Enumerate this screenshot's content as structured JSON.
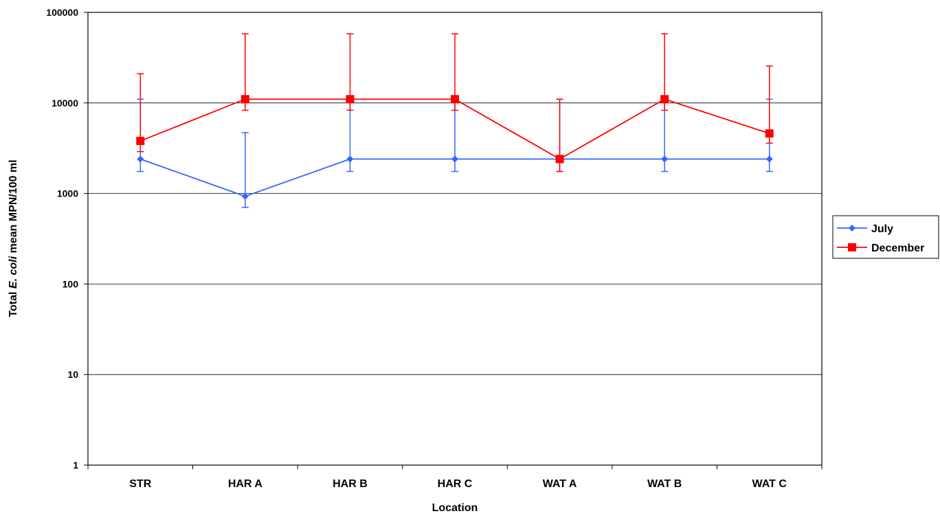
{
  "chart_data": {
    "type": "line",
    "xlabel": "Location",
    "ylabel_parts": [
      "Total ",
      "E. coli",
      " mean MPN/100 ml"
    ],
    "yscale": "log",
    "ylim": [
      1,
      100000
    ],
    "yticks": [
      "1",
      "10",
      "100",
      "1000",
      "10000",
      "100000"
    ],
    "ytick_values": [
      1,
      10,
      100,
      1000,
      10000,
      100000
    ],
    "grid": true,
    "legend_position": "right",
    "categories": [
      "STR",
      "HAR A",
      "HAR B",
      "HAR C",
      "WAT A",
      "WAT B",
      "WAT C"
    ],
    "series": [
      {
        "name": "July",
        "color": "#3366ff",
        "marker": "diamond",
        "values": [
          2400,
          930,
          2400,
          2400,
          2400,
          2400,
          2400
        ],
        "err_low": [
          1750,
          700,
          1750,
          1750,
          1750,
          1750,
          1750
        ],
        "err_high": [
          11000,
          4700,
          11000,
          11000,
          11000,
          11000,
          11000
        ]
      },
      {
        "name": "December",
        "color": "#ff0000",
        "marker": "square",
        "values": [
          3800,
          11000,
          11000,
          11000,
          2400,
          11000,
          4600
        ],
        "err_low": [
          2900,
          8300,
          8300,
          8300,
          1750,
          8300,
          3600
        ],
        "err_high": [
          21000,
          58000,
          58000,
          58000,
          11000,
          58000,
          25500
        ]
      }
    ]
  }
}
